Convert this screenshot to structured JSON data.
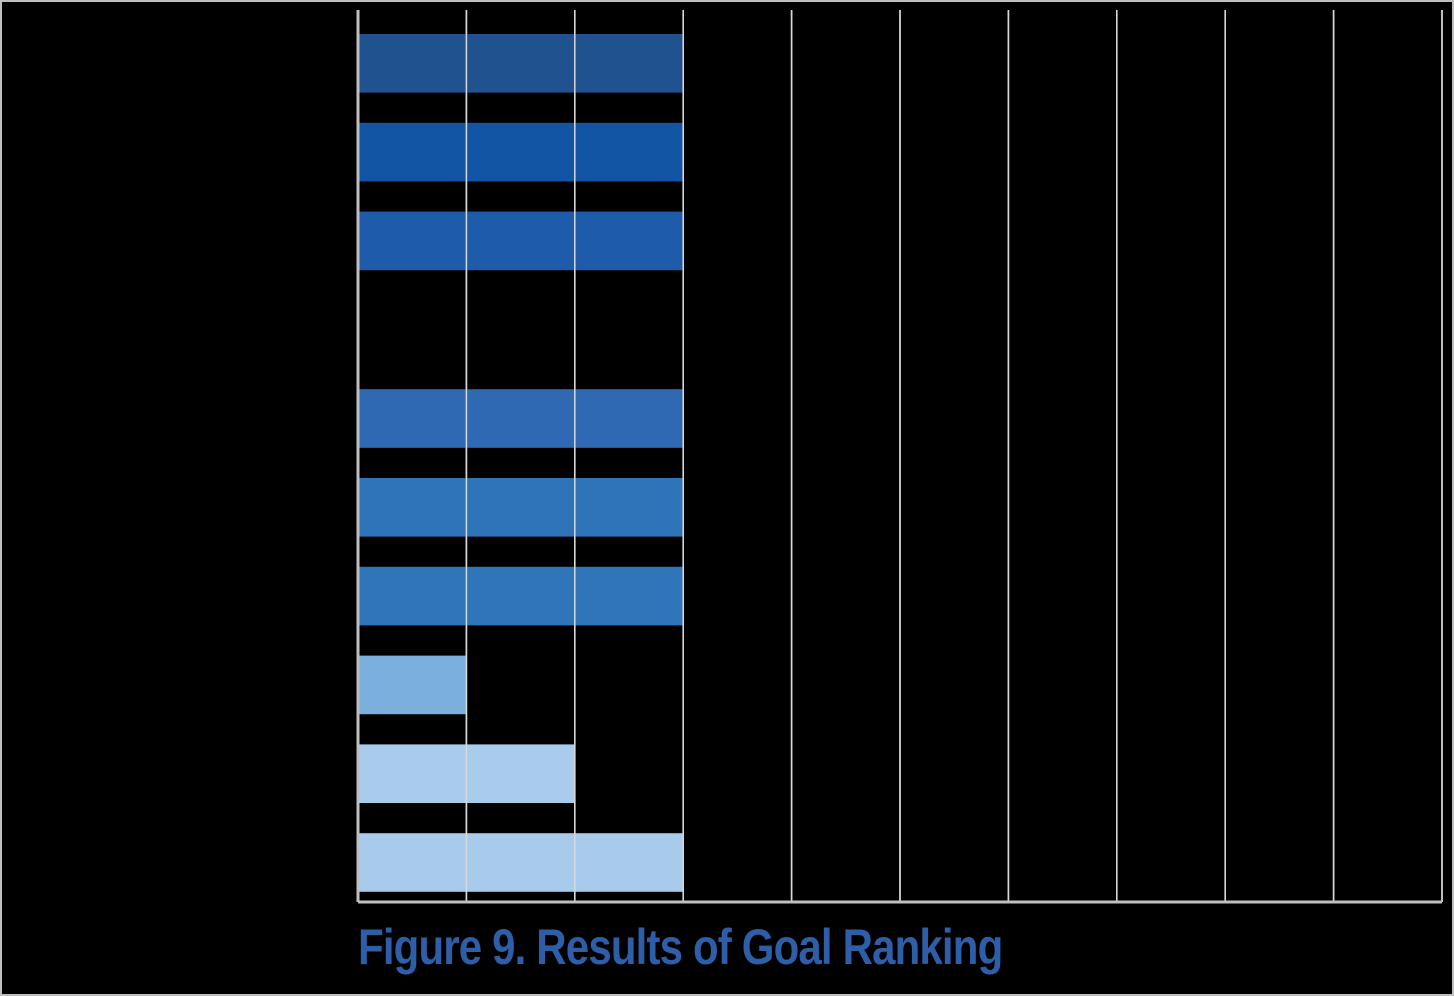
{
  "caption": "Figure 9. Results of Goal Ranking",
  "colors": {
    "background": "#000000",
    "gridline": "#d9d9d9",
    "axis": "#bfbfbf",
    "caption": "#2e5ea8"
  },
  "chart_data": {
    "type": "bar",
    "orientation": "horizontal",
    "title": "",
    "xlabel": "",
    "ylabel": "",
    "xlim": [
      0,
      10
    ],
    "grid": true,
    "legend": "none",
    "tick_labels_visible": false,
    "values": [
      3,
      3,
      3,
      0,
      3,
      3,
      3,
      1,
      2,
      3
    ],
    "bar_colors": [
      "#1f528f",
      "#1255a4",
      "#1e5bab",
      "#000000",
      "#2f69b3",
      "#2e74b8",
      "#2e75b9",
      "#7bb0de",
      "#a9cbec",
      "#a8cbeb"
    ]
  }
}
